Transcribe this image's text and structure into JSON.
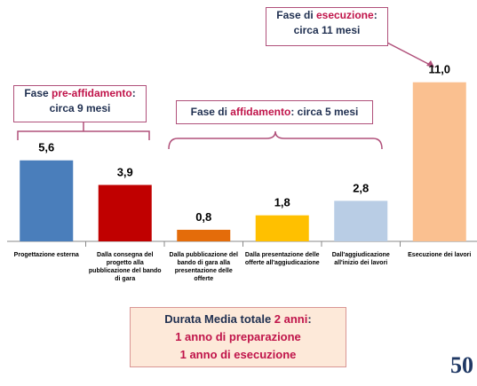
{
  "chart_data": {
    "type": "bar",
    "categories": [
      "Progettazione esterna",
      "Dalla consegna del progetto alla pubblicazione del bando di gara",
      "Dalla pubblicazione del bando di gara alla presentazione delle offerte",
      "Dalla presentazione delle offerte all'aggiudicazione",
      "Dall'aggiudicazione all'inizio dei lavori",
      "Esecuzione dei lavori"
    ],
    "values": [
      5.6,
      3.9,
      0.8,
      1.8,
      2.8,
      11.0
    ],
    "value_labels": [
      "5,6",
      "3,9",
      "0,8",
      "1,8",
      "2,8",
      "11,0"
    ],
    "colors": [
      "#4a7ebb",
      "#c00000",
      "#e46c0a",
      "#ffc000",
      "#b9cde5",
      "#fac090"
    ],
    "annotations": [
      {
        "before": "Fase ",
        "highlight": "pre-affidamento",
        "after": ":",
        "line2": "circa 9 mesi"
      },
      {
        "before": "Fase di ",
        "highlight": "affidamento",
        "after": ": circa 5 mesi"
      },
      {
        "before": "Fase di ",
        "highlight": "esecuzione",
        "after": ":",
        "line2": "circa 11 mesi"
      }
    ],
    "summary": {
      "before": "Durata Media totale ",
      "highlight": "2 anni",
      "after": ":",
      "line2": "1 anno di preparazione",
      "line3": "1 anno di esecuzione"
    },
    "logo": "50"
  }
}
